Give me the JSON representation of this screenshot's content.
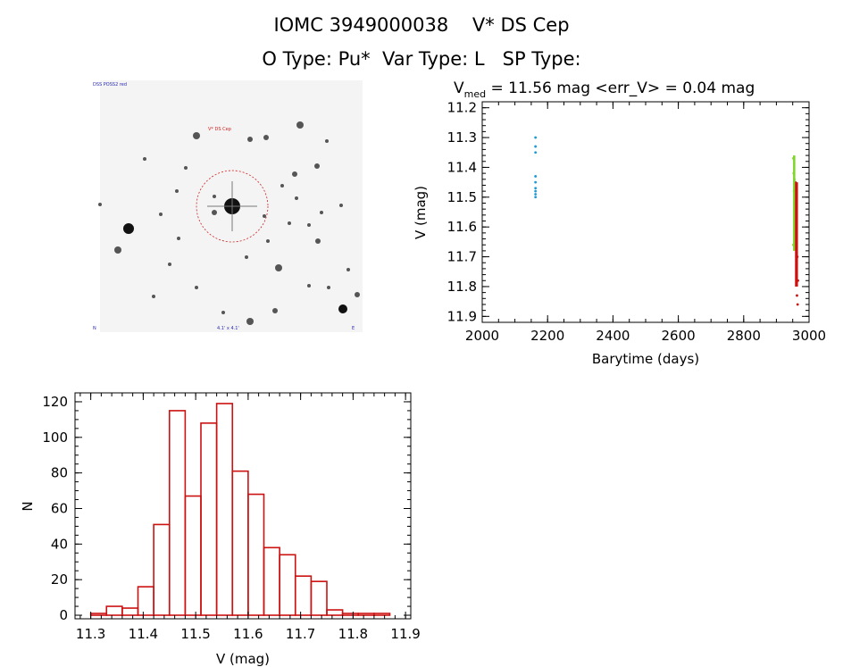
{
  "header": {
    "line1": "IOMC 3949000038    V* DS Cep",
    "line2": "O Type: Pu*  Var Type: L   SP Type:"
  },
  "sky_image": {
    "label_top_left": "DSS POSS2 red",
    "target_label": "V* DS Cep",
    "label_bottom_center": "4.1' x 4.1'",
    "label_bottom_left": "N",
    "label_bottom_right": "E"
  },
  "light_curve": {
    "title_main": "V",
    "title_sub": "med",
    "title_rest": " = 11.56 mag <err_V> = 0.04 mag",
    "x_label": "Barytime (days)",
    "y_label": "V (mag)",
    "x_ticks": [
      "2000",
      "2200",
      "2400",
      "2600",
      "2800",
      "3000"
    ],
    "y_ticks": [
      "11.2",
      "11.3",
      "11.4",
      "11.5",
      "11.6",
      "11.7",
      "11.8",
      "11.9"
    ],
    "colors": {
      "early": "#1a9bd7",
      "late_bright": "#7fd62a",
      "late_dim": "#cc1111"
    }
  },
  "chart_data": [
    {
      "type": "scatter",
      "xlabel": "Barytime (days)",
      "ylabel": "V (mag)",
      "xlim": [
        2000,
        3000
      ],
      "ylim": [
        11.92,
        11.18
      ],
      "grid": false,
      "series": [
        {
          "x": [
            2163,
            2163,
            2163,
            2163,
            2163,
            2163,
            2163,
            2163,
            2163
          ],
          "y": [
            11.3,
            11.33,
            11.35,
            11.43,
            11.45,
            11.47,
            11.48,
            11.49,
            11.5
          ]
        },
        {
          "x": [
            2952,
            2953,
            2954,
            2955,
            2956,
            2957,
            2958,
            2952,
            2955,
            2957
          ],
          "y": [
            11.37,
            11.42,
            11.48,
            11.52,
            11.56,
            11.6,
            11.64,
            11.66,
            11.44,
            11.5
          ]
        },
        {
          "x": [
            2958,
            2960,
            2962,
            2964,
            2966,
            2965,
            2963
          ],
          "y": [
            11.45,
            11.55,
            11.62,
            11.7,
            11.78,
            11.86,
            11.83
          ]
        }
      ]
    },
    {
      "type": "bar",
      "title": "",
      "xlabel": "V (mag)",
      "ylabel": "N",
      "xlim": [
        11.27,
        11.91
      ],
      "ylim": [
        -2,
        125
      ],
      "bin_edges": [
        11.3,
        11.33,
        11.36,
        11.39,
        11.42,
        11.45,
        11.48,
        11.51,
        11.54,
        11.57,
        11.6,
        11.63,
        11.66,
        11.69,
        11.72,
        11.75,
        11.78,
        11.81,
        11.84,
        11.87
      ],
      "values": [
        1,
        5,
        4,
        16,
        51,
        115,
        67,
        108,
        119,
        81,
        68,
        38,
        34,
        22,
        19,
        3,
        1,
        1,
        1
      ],
      "x_ticks": [
        "11.3",
        "11.4",
        "11.5",
        "11.6",
        "11.7",
        "11.8",
        "11.9"
      ],
      "y_ticks": [
        "0",
        "20",
        "40",
        "60",
        "80",
        "100",
        "120"
      ],
      "bar_color": "#cc1111"
    }
  ]
}
